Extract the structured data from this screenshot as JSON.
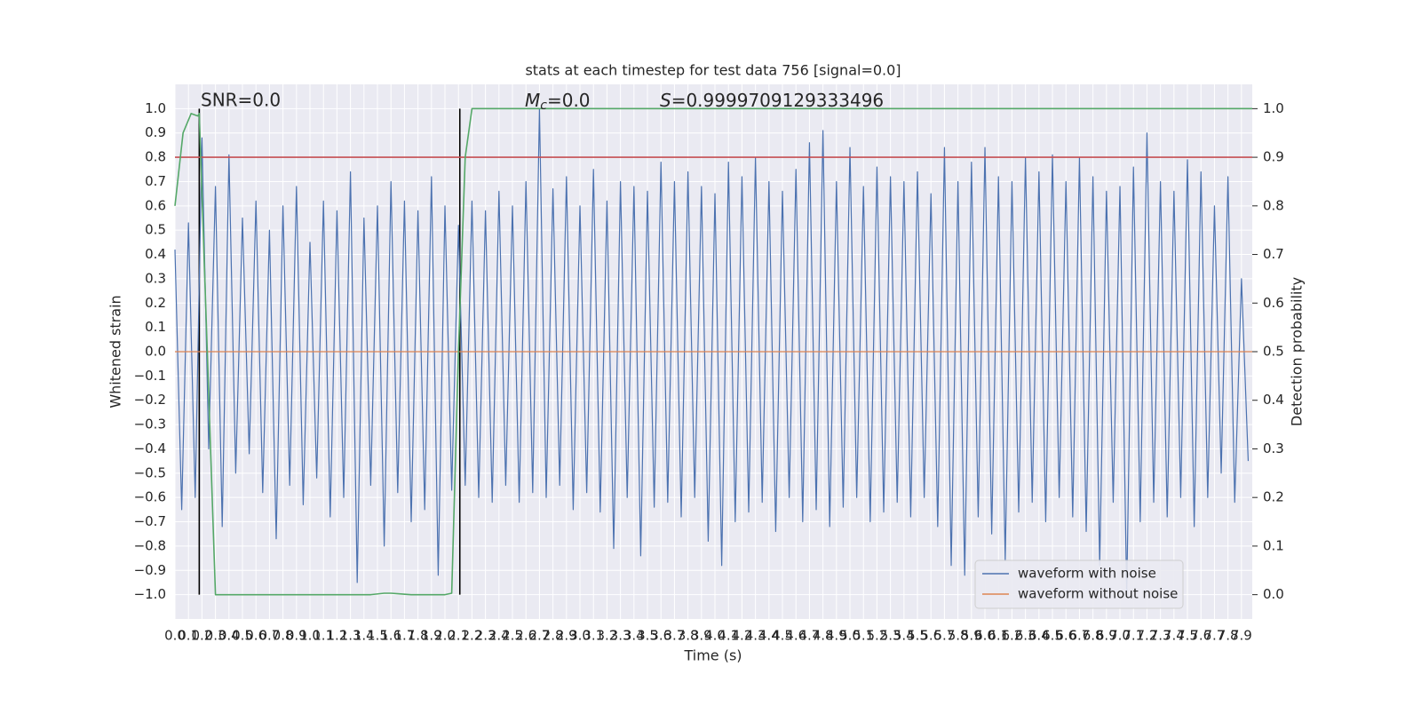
{
  "chart_data": {
    "type": "line",
    "title": "stats at each timestep for test data 756 [signal=0.0]",
    "xlabel": "Time (s)",
    "ylabel": "Whitened strain",
    "y2label": "Detection probability",
    "xlim": [
      0,
      7.98
    ],
    "ylim": [
      -1.1,
      1.1
    ],
    "y2lim": [
      -0.05,
      1.05
    ],
    "grid": true,
    "legend": "lower right",
    "annotations": {
      "snr": "SNR=0.0",
      "mc": {
        "symbol": "M",
        "subscript": "c",
        "text": "=0.0"
      },
      "s": {
        "symbol": "S",
        "text": "=0.9999709129333496"
      }
    },
    "threshold": {
      "value": 0.9,
      "axis": "y2",
      "color": "#c44e52"
    },
    "vlines": {
      "x": [
        0.18,
        2.11
      ],
      "ymin": -1,
      "ymax": 1,
      "color": "#000000"
    },
    "xticks": [
      {
        "value": 0,
        "label": "0.0"
      },
      0.1,
      0.2,
      0.3,
      0.4,
      0.5,
      0.6,
      0.7,
      0.8,
      0.9,
      {
        "value": 1,
        "label": "1.0"
      },
      1.1,
      1.2,
      1.3,
      1.4,
      1.5,
      1.6,
      1.7,
      1.8,
      1.9,
      {
        "value": 2,
        "label": "2.0"
      },
      2.1,
      2.2,
      2.3,
      2.4,
      2.5,
      2.6,
      2.7,
      2.8,
      2.9,
      {
        "value": 3,
        "label": "3.0"
      },
      3.1,
      3.2,
      3.3,
      3.4,
      3.5,
      3.6,
      3.7,
      3.8,
      3.9,
      {
        "value": 4,
        "label": "4.0"
      },
      4.1,
      4.2,
      4.3,
      4.4,
      4.5,
      4.6,
      4.7,
      4.8,
      4.9,
      {
        "value": 5,
        "label": "5.0"
      },
      5.1,
      5.2,
      5.3,
      5.4,
      5.5,
      5.6,
      5.7,
      5.8,
      5.9,
      {
        "value": 6,
        "label": "6.0"
      },
      6.1,
      6.2,
      6.3,
      6.4,
      6.5,
      6.6,
      6.7,
      6.8,
      6.9,
      {
        "value": 7,
        "label": "7.0"
      },
      7.1,
      7.2,
      7.3,
      7.4,
      7.5,
      7.6,
      7.7,
      7.8,
      7.9
    ],
    "yticks": [
      {
        "value": -1,
        "label": "−1.0"
      },
      {
        "value": -0.9,
        "label": "−0.9"
      },
      {
        "value": -0.8,
        "label": "−0.8"
      },
      {
        "value": -0.7,
        "label": "−0.7"
      },
      {
        "value": -0.6,
        "label": "−0.6"
      },
      {
        "value": -0.5,
        "label": "−0.5"
      },
      {
        "value": -0.4,
        "label": "−0.4"
      },
      {
        "value": -0.3,
        "label": "−0.3"
      },
      {
        "value": -0.2,
        "label": "−0.2"
      },
      {
        "value": -0.1,
        "label": "−0.1"
      },
      {
        "value": 0,
        "label": "0.0"
      },
      0.1,
      0.2,
      0.3,
      0.4,
      0.5,
      0.6,
      0.7,
      0.8,
      0.9,
      {
        "value": 1,
        "label": "1.0"
      }
    ],
    "y2ticks": [
      {
        "value": 0,
        "label": "0.0"
      },
      0.1,
      0.2,
      0.3,
      0.4,
      0.5,
      0.6,
      0.7,
      0.8,
      0.9,
      {
        "value": 1,
        "label": "1.0"
      }
    ],
    "series": [
      {
        "name": "waveform with noise",
        "color": "#4c72b0",
        "x": [
          0,
          0.05,
          0.1,
          0.15,
          0.2,
          0.25,
          0.3,
          0.35,
          0.4,
          0.45,
          0.5,
          0.55,
          0.6,
          0.65,
          0.7,
          0.75,
          0.8,
          0.85,
          0.9,
          0.95,
          1,
          1.05,
          1.1,
          1.15,
          1.2,
          1.25,
          1.3,
          1.35,
          1.4,
          1.45,
          1.5,
          1.55,
          1.6,
          1.65,
          1.7,
          1.75,
          1.8,
          1.85,
          1.9,
          1.95,
          2,
          2.05,
          2.1,
          2.15,
          2.2,
          2.25,
          2.3,
          2.35,
          2.4,
          2.45,
          2.5,
          2.55,
          2.6,
          2.65,
          2.7,
          2.75,
          2.8,
          2.85,
          2.9,
          2.95,
          3,
          3.05,
          3.1,
          3.15,
          3.2,
          3.25,
          3.3,
          3.35,
          3.4,
          3.45,
          3.5,
          3.55,
          3.6,
          3.65,
          3.7,
          3.75,
          3.8,
          3.85,
          3.9,
          3.95,
          4,
          4.05,
          4.1,
          4.15,
          4.2,
          4.25,
          4.3,
          4.35,
          4.4,
          4.45,
          4.5,
          4.55,
          4.6,
          4.65,
          4.7,
          4.75,
          4.8,
          4.85,
          4.9,
          4.95,
          5,
          5.05,
          5.1,
          5.15,
          5.2,
          5.25,
          5.3,
          5.35,
          5.4,
          5.45,
          5.5,
          5.55,
          5.6,
          5.65,
          5.7,
          5.75,
          5.8,
          5.85,
          5.9,
          5.95,
          6,
          6.05,
          6.1,
          6.15,
          6.2,
          6.25,
          6.3,
          6.35,
          6.4,
          6.45,
          6.5,
          6.55,
          6.6,
          6.65,
          6.7,
          6.75,
          6.8,
          6.85,
          6.9,
          6.95,
          7,
          7.05,
          7.1,
          7.15,
          7.2,
          7.25,
          7.3,
          7.35,
          7.4,
          7.45,
          7.5,
          7.55,
          7.6,
          7.65,
          7.7,
          7.75,
          7.8,
          7.85,
          7.9,
          7.95
        ],
        "values": [
          0.42,
          -0.65,
          0.53,
          -0.6,
          0.88,
          -0.4,
          0.68,
          -0.72,
          0.81,
          -0.5,
          0.55,
          -0.42,
          0.62,
          -0.58,
          0.5,
          -0.77,
          0.6,
          -0.55,
          0.68,
          -0.63,
          0.45,
          -0.52,
          0.62,
          -0.68,
          0.58,
          -0.6,
          0.74,
          -0.95,
          0.55,
          -0.55,
          0.6,
          -0.8,
          0.7,
          -0.58,
          0.62,
          -0.7,
          0.58,
          -0.65,
          0.72,
          -0.92,
          0.6,
          -0.57,
          0.52,
          -0.55,
          0.62,
          -0.6,
          0.58,
          -0.62,
          0.66,
          -0.55,
          0.6,
          -0.62,
          0.7,
          -0.58,
          1.0,
          -0.6,
          0.67,
          -0.55,
          0.72,
          -0.65,
          0.6,
          -0.58,
          0.75,
          -0.66,
          0.62,
          -0.81,
          0.7,
          -0.6,
          0.68,
          -0.84,
          0.66,
          -0.64,
          0.78,
          -0.62,
          0.7,
          -0.68,
          0.74,
          -0.6,
          0.68,
          -0.78,
          0.65,
          -0.88,
          0.78,
          -0.7,
          0.72,
          -0.66,
          0.8,
          -0.62,
          0.7,
          -0.74,
          0.66,
          -0.6,
          0.75,
          -0.7,
          0.86,
          -0.65,
          0.91,
          -0.72,
          0.7,
          -0.64,
          0.84,
          -0.6,
          0.68,
          -0.7,
          0.76,
          -0.66,
          0.72,
          -0.62,
          0.7,
          -0.68,
          0.74,
          -0.6,
          0.65,
          -0.72,
          0.84,
          -0.88,
          0.7,
          -0.92,
          0.78,
          -0.68,
          0.84,
          -0.75,
          0.72,
          -0.86,
          0.7,
          -0.66,
          0.8,
          -0.62,
          0.74,
          -0.7,
          0.81,
          -0.6,
          0.7,
          -0.68,
          0.8,
          -0.74,
          0.72,
          -0.88,
          0.66,
          -0.62,
          0.68,
          -1.0,
          0.76,
          -0.7,
          0.9,
          -0.62,
          0.7,
          -0.68,
          0.66,
          -0.6,
          0.79,
          -0.72,
          0.74,
          -0.6,
          0.6,
          -0.5,
          0.72,
          -0.62,
          0.3,
          -0.45
        ]
      },
      {
        "name": "waveform without noise",
        "color": "#dd8452",
        "x": [
          0,
          7.98
        ],
        "values": [
          0,
          0
        ]
      },
      {
        "color": "#55a868",
        "axis": "y2",
        "x": [
          0,
          0.06,
          0.12,
          0.17,
          0.18,
          0.3,
          0.35,
          0.5,
          1.0,
          1.45,
          1.55,
          1.6,
          1.65,
          1.75,
          2.0,
          2.05,
          2.1,
          2.15,
          2.2,
          7.98
        ],
        "values": [
          0.8,
          0.95,
          0.99,
          0.985,
          0.99,
          0.0,
          0.0,
          0.0,
          0.0,
          0.0,
          0.003,
          0.003,
          0.002,
          0.0,
          0.0,
          0.003,
          0.5,
          0.9,
          1.0,
          1.0
        ]
      }
    ]
  }
}
